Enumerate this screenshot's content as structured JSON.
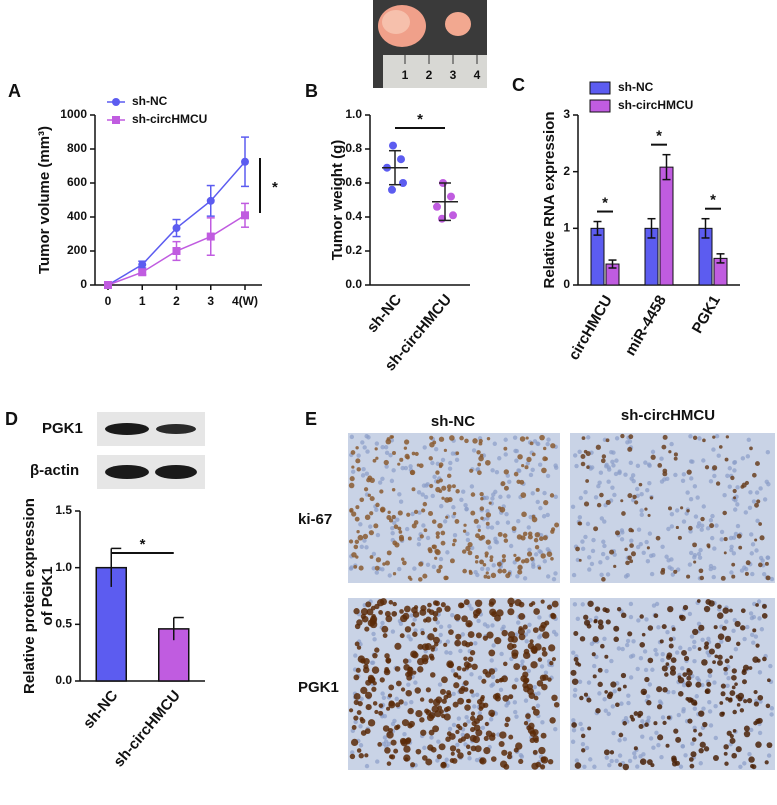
{
  "panel_letters": [
    "A",
    "B",
    "C",
    "D",
    "E"
  ],
  "photo": {
    "ruler_labels": [
      "1",
      "2",
      "3",
      "4"
    ]
  },
  "blot": {
    "rows": [
      "PGK1",
      "β-actin"
    ]
  },
  "ihc": {
    "columns": [
      "sh-NC",
      "sh-circHMCU"
    ],
    "rows": [
      "ki-67",
      "PGK1"
    ]
  },
  "chart_data": [
    {
      "type": "line",
      "y_label": "Tumor volume (mm³)",
      "categories": [
        "0",
        "1",
        "2",
        "3",
        "4(W)"
      ],
      "series": [
        {
          "name": "sh-NC",
          "color": "#5c5cf0",
          "marker": "circle",
          "values": [
            0,
            120,
            335,
            495,
            725
          ],
          "errors": [
            0,
            20,
            50,
            90,
            145
          ]
        },
        {
          "name": "sh-circHMCU",
          "color": "#c05ce0",
          "marker": "square",
          "values": [
            0,
            75,
            200,
            285,
            410
          ],
          "errors": [
            0,
            15,
            55,
            110,
            70
          ]
        }
      ],
      "ylim": [
        0,
        1000
      ],
      "yticks": [
        0,
        200,
        400,
        600,
        800,
        1000
      ],
      "annotation": "*"
    },
    {
      "type": "dot",
      "y_label": "Tumor weight (g)",
      "categories": [
        "sh-NC",
        "sh-circHMCU"
      ],
      "groups": [
        {
          "color": "#5c5cf0",
          "values": [
            0.82,
            0.74,
            0.69,
            0.6,
            0.56
          ],
          "mean": 0.69,
          "sd": 0.1
        },
        {
          "color": "#c05ce0",
          "values": [
            0.6,
            0.52,
            0.46,
            0.41,
            0.39
          ],
          "mean": 0.49,
          "sd": 0.11
        }
      ],
      "ylim": [
        0,
        1
      ],
      "yticks": [
        {
          "value": 0,
          "label": "0.0"
        },
        0.2,
        0.4,
        0.6,
        0.8,
        {
          "value": 1,
          "label": "1.0"
        }
      ],
      "annotation": "*"
    },
    {
      "type": "grouped_bar",
      "y_label": "Relative RNA expression",
      "categories": [
        "circHMCU",
        "miR-4458",
        "PGK1"
      ],
      "series": [
        {
          "name": "sh-NC",
          "color": "#5c5cf0",
          "values": [
            1,
            1,
            1
          ],
          "errors": [
            0.12,
            0.17,
            0.17
          ]
        },
        {
          "name": "sh-circHMCU",
          "color": "#c05ce0",
          "values": [
            0.37,
            2.08,
            0.47
          ],
          "errors": [
            0.07,
            0.22,
            0.08
          ]
        }
      ],
      "ylim": [
        0,
        3
      ],
      "yticks": [
        0,
        1,
        2,
        3
      ],
      "annotations": [
        "*",
        "*",
        "*"
      ]
    },
    {
      "type": "bar",
      "y_label": [
        "Relative protein expression",
        "of PGK1"
      ],
      "categories": [
        "sh-NC",
        "sh-circHMCU"
      ],
      "values": [
        1,
        0.46
      ],
      "errors": [
        0.17,
        0.1
      ],
      "colors": [
        "#5c5cf0",
        "#c05ce0"
      ],
      "ylim": [
        0,
        1.5
      ],
      "yticks": [
        {
          "value": 0,
          "label": "0.0"
        },
        0.5,
        {
          "value": 1,
          "label": "1.0"
        },
        1.5
      ],
      "annotation": "*"
    }
  ]
}
